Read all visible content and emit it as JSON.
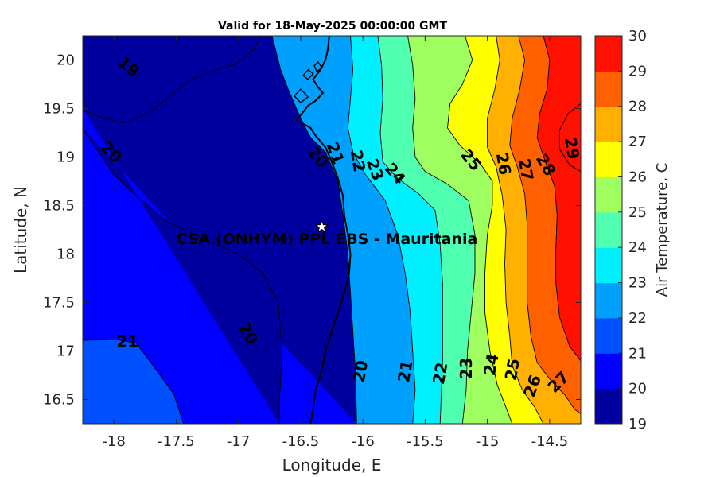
{
  "title": "Valid for 18-May-2025 00:00:00 GMT",
  "site_label": "CSA (ONHYM) PPL EBS  - Mauritania",
  "site_coord": {
    "lon": -16.33,
    "lat": 18.28
  },
  "xlabel": "Longitude, E",
  "ylabel": "Latitude, N",
  "colorbar_label": "Air Temperature, C",
  "chart_data": {
    "type": "contourf",
    "variable": "Air Temperature",
    "units": "C",
    "xlim": [
      -18.25,
      -14.25
    ],
    "ylim": [
      16.25,
      20.25
    ],
    "xticks": [
      "-18",
      "-17.5",
      "-17",
      "-16.5",
      "-16",
      "-15.5",
      "-15",
      "-14.5"
    ],
    "yticks": [
      "16.5",
      "17",
      "17.5",
      "18",
      "18.5",
      "19",
      "19.5",
      "20"
    ],
    "colorbar": {
      "range": [
        19,
        30
      ],
      "ticks": [
        "19",
        "20",
        "21",
        "22",
        "23",
        "24",
        "25",
        "26",
        "27",
        "28",
        "29",
        "30"
      ],
      "colors": [
        "#00009f",
        "#0000ff",
        "#0050ff",
        "#00a0ff",
        "#00f0ff",
        "#50ffb0",
        "#a0ff60",
        "#ffff00",
        "#ffb000",
        "#ff6000",
        "#ff1000",
        "#b00000"
      ]
    },
    "contour_labels": [
      {
        "text": "19",
        "lon": -17.88,
        "lat": 19.93,
        "rot": 40
      },
      {
        "text": "20",
        "lon": -18.02,
        "lat": 19.05,
        "rot": 45
      },
      {
        "text": "21",
        "lon": -17.89,
        "lat": 17.1,
        "rot": 0
      },
      {
        "text": "20",
        "lon": -16.92,
        "lat": 17.18,
        "rot": 60
      },
      {
        "text": "20",
        "lon": -16.36,
        "lat": 19.0,
        "rot": 50
      },
      {
        "text": "21",
        "lon": -16.22,
        "lat": 19.04,
        "rot": 70
      },
      {
        "text": "22",
        "lon": -16.04,
        "lat": 18.96,
        "rot": 80
      },
      {
        "text": "23",
        "lon": -15.9,
        "lat": 18.87,
        "rot": 70
      },
      {
        "text": "24",
        "lon": -15.74,
        "lat": 18.83,
        "rot": 50
      },
      {
        "text": "25",
        "lon": -15.13,
        "lat": 18.97,
        "rot": 50
      },
      {
        "text": "26",
        "lon": -14.87,
        "lat": 18.93,
        "rot": 80
      },
      {
        "text": "27",
        "lon": -14.69,
        "lat": 18.87,
        "rot": 80
      },
      {
        "text": "28",
        "lon": -14.53,
        "lat": 18.92,
        "rot": 60
      },
      {
        "text": "29",
        "lon": -14.32,
        "lat": 19.09,
        "rot": 80
      },
      {
        "text": "20",
        "lon": -16.02,
        "lat": 16.79,
        "rot": -80
      },
      {
        "text": "21",
        "lon": -15.66,
        "lat": 16.79,
        "rot": -80
      },
      {
        "text": "22",
        "lon": -15.38,
        "lat": 16.77,
        "rot": -80
      },
      {
        "text": "23",
        "lon": -15.17,
        "lat": 16.82,
        "rot": -90
      },
      {
        "text": "24",
        "lon": -14.97,
        "lat": 16.86,
        "rot": -80
      },
      {
        "text": "25",
        "lon": -14.8,
        "lat": 16.81,
        "rot": -80
      },
      {
        "text": "26",
        "lon": -14.64,
        "lat": 16.64,
        "rot": -70
      },
      {
        "text": "27",
        "lon": -14.43,
        "lat": 16.68,
        "rot": -45
      }
    ]
  },
  "contour_paths": [
    {
      "level": 20,
      "pts": [
        [
          -18.25,
          19.48
        ],
        [
          -18.08,
          19.4
        ],
        [
          -17.92,
          19.35
        ],
        [
          -17.72,
          19.45
        ],
        [
          -17.52,
          19.66
        ],
        [
          -17.38,
          19.8
        ],
        [
          -17.22,
          19.88
        ],
        [
          -17.02,
          19.96
        ],
        [
          -16.88,
          20.1
        ],
        [
          -16.82,
          20.25
        ]
      ]
    },
    {
      "level": 21,
      "pts": [
        [
          -18.25,
          17.11
        ],
        [
          -17.98,
          17.12
        ],
        [
          -17.82,
          17.08
        ],
        [
          -17.68,
          16.84
        ],
        [
          -17.52,
          16.56
        ],
        [
          -17.44,
          16.25
        ]
      ]
    },
    {
      "level": 21,
      "pts": [
        [
          -16.67,
          16.25
        ],
        [
          -16.67,
          16.5
        ],
        [
          -16.66,
          16.7
        ],
        [
          -16.65,
          17.0
        ],
        [
          -16.68,
          17.5
        ],
        [
          -16.8,
          17.8
        ],
        [
          -17.0,
          18.0
        ],
        [
          -17.32,
          18.18
        ],
        [
          -17.6,
          18.36
        ],
        [
          -17.82,
          18.6
        ],
        [
          -18.0,
          18.82
        ],
        [
          -18.2,
          19.2
        ],
        [
          -18.25,
          19.3
        ]
      ]
    },
    {
      "level": 22,
      "pts": [
        [
          -16.73,
          20.25
        ],
        [
          -16.7,
          20.1
        ],
        [
          -16.66,
          19.9
        ],
        [
          -16.6,
          19.7
        ],
        [
          -16.5,
          19.4
        ],
        [
          -16.42,
          19.2
        ],
        [
          -16.3,
          19.05
        ],
        [
          -16.2,
          18.75
        ],
        [
          -16.16,
          18.4
        ],
        [
          -16.12,
          18.0
        ],
        [
          -16.1,
          17.6
        ],
        [
          -16.08,
          17.2
        ],
        [
          -16.06,
          16.8
        ],
        [
          -16.05,
          16.25
        ]
      ]
    },
    {
      "level": 23,
      "pts": [
        [
          -16.1,
          20.25
        ],
        [
          -16.08,
          19.9
        ],
        [
          -16.1,
          19.6
        ],
        [
          -16.12,
          19.3
        ],
        [
          -16.08,
          19.05
        ],
        [
          -15.98,
          18.82
        ],
        [
          -15.82,
          18.55
        ],
        [
          -15.72,
          18.2
        ],
        [
          -15.66,
          17.8
        ],
        [
          -15.62,
          17.4
        ],
        [
          -15.6,
          17.0
        ],
        [
          -15.58,
          16.6
        ],
        [
          -15.6,
          16.25
        ]
      ]
    },
    {
      "level": 24,
      "pts": [
        [
          -15.88,
          20.25
        ],
        [
          -15.85,
          19.95
        ],
        [
          -15.84,
          19.6
        ],
        [
          -15.86,
          19.25
        ],
        [
          -15.84,
          18.95
        ],
        [
          -15.72,
          18.78
        ],
        [
          -15.55,
          18.62
        ],
        [
          -15.42,
          18.45
        ],
        [
          -15.38,
          18.1
        ],
        [
          -15.36,
          17.7
        ],
        [
          -15.36,
          17.3
        ],
        [
          -15.36,
          16.9
        ],
        [
          -15.37,
          16.55
        ],
        [
          -15.38,
          16.25
        ]
      ]
    },
    {
      "level": 25,
      "pts": [
        [
          -15.64,
          20.25
        ],
        [
          -15.6,
          19.95
        ],
        [
          -15.58,
          19.6
        ],
        [
          -15.6,
          19.3
        ],
        [
          -15.58,
          19.0
        ],
        [
          -15.5,
          18.85
        ],
        [
          -15.32,
          18.72
        ],
        [
          -15.15,
          18.55
        ],
        [
          -15.1,
          18.2
        ],
        [
          -15.1,
          17.8
        ],
        [
          -15.13,
          17.4
        ],
        [
          -15.16,
          17.0
        ],
        [
          -15.17,
          16.6
        ],
        [
          -15.2,
          16.25
        ]
      ]
    },
    {
      "level": 26,
      "pts": [
        [
          -15.18,
          20.25
        ],
        [
          -15.12,
          20.0
        ],
        [
          -15.2,
          19.75
        ],
        [
          -15.3,
          19.55
        ],
        [
          -15.32,
          19.3
        ],
        [
          -15.22,
          19.12
        ],
        [
          -15.05,
          18.92
        ],
        [
          -14.96,
          18.75
        ],
        [
          -14.96,
          18.5
        ],
        [
          -15.0,
          18.2
        ],
        [
          -15.02,
          17.8
        ],
        [
          -15.02,
          17.4
        ],
        [
          -14.98,
          17.0
        ],
        [
          -14.92,
          16.65
        ],
        [
          -14.8,
          16.25
        ]
      ]
    },
    {
      "level": 27,
      "pts": [
        [
          -14.93,
          20.25
        ],
        [
          -14.9,
          20.0
        ],
        [
          -14.94,
          19.7
        ],
        [
          -15.0,
          19.4
        ],
        [
          -15.0,
          19.1
        ],
        [
          -14.93,
          18.9
        ],
        [
          -14.88,
          18.6
        ],
        [
          -14.85,
          18.25
        ],
        [
          -14.86,
          17.9
        ],
        [
          -14.85,
          17.5
        ],
        [
          -14.82,
          17.15
        ],
        [
          -14.8,
          16.85
        ],
        [
          -14.72,
          16.6
        ],
        [
          -14.62,
          16.42
        ],
        [
          -14.55,
          16.25
        ]
      ]
    },
    {
      "level": 28,
      "pts": [
        [
          -14.75,
          20.25
        ],
        [
          -14.7,
          20.0
        ],
        [
          -14.74,
          19.7
        ],
        [
          -14.8,
          19.4
        ],
        [
          -14.82,
          19.12
        ],
        [
          -14.76,
          18.9
        ],
        [
          -14.7,
          18.62
        ],
        [
          -14.68,
          18.3
        ],
        [
          -14.68,
          17.9
        ],
        [
          -14.68,
          17.5
        ],
        [
          -14.65,
          17.15
        ],
        [
          -14.6,
          16.88
        ],
        [
          -14.48,
          16.68
        ],
        [
          -14.38,
          16.55
        ],
        [
          -14.3,
          16.4
        ],
        [
          -14.25,
          16.35
        ]
      ]
    },
    {
      "level": 29,
      "pts": [
        [
          -14.55,
          20.25
        ],
        [
          -14.5,
          20.0
        ],
        [
          -14.52,
          19.7
        ],
        [
          -14.58,
          19.45
        ],
        [
          -14.6,
          19.2
        ],
        [
          -14.52,
          18.9
        ],
        [
          -14.46,
          18.7
        ],
        [
          -14.44,
          18.4
        ],
        [
          -14.45,
          18.05
        ],
        [
          -14.45,
          17.7
        ],
        [
          -14.42,
          17.35
        ],
        [
          -14.34,
          17.05
        ],
        [
          -14.25,
          16.9
        ]
      ]
    },
    {
      "level": 30,
      "pts": [
        [
          -14.25,
          19.55
        ],
        [
          -14.35,
          19.45
        ],
        [
          -14.42,
          19.28
        ],
        [
          -14.42,
          19.08
        ],
        [
          -14.34,
          18.92
        ],
        [
          -14.25,
          18.85
        ]
      ]
    }
  ],
  "coastline": [
    [
      -16.27,
      20.25
    ],
    [
      -16.28,
      20.12
    ],
    [
      -16.3,
      20.0
    ],
    [
      -16.34,
      19.9
    ],
    [
      -16.4,
      19.8
    ],
    [
      -16.36,
      19.72
    ],
    [
      -16.32,
      19.66
    ],
    [
      -16.38,
      19.58
    ],
    [
      -16.44,
      19.53
    ],
    [
      -16.53,
      19.38
    ],
    [
      -16.42,
      19.3
    ],
    [
      -16.38,
      19.22
    ],
    [
      -16.3,
      19.1
    ],
    [
      -16.25,
      18.95
    ],
    [
      -16.2,
      18.78
    ],
    [
      -16.16,
      18.6
    ],
    [
      -16.15,
      18.4
    ],
    [
      -16.12,
      18.2
    ],
    [
      -16.1,
      18.0
    ],
    [
      -16.11,
      17.8
    ],
    [
      -16.15,
      17.6
    ],
    [
      -16.2,
      17.4
    ],
    [
      -16.25,
      17.2
    ],
    [
      -16.3,
      17.0
    ],
    [
      -16.33,
      16.8
    ],
    [
      -16.38,
      16.6
    ],
    [
      -16.4,
      16.4
    ],
    [
      -16.42,
      16.25
    ]
  ],
  "islands": [
    [
      [
        -16.44,
        19.9
      ],
      [
        -16.4,
        19.86
      ],
      [
        -16.44,
        19.8
      ],
      [
        -16.48,
        19.84
      ]
    ],
    [
      [
        -16.5,
        19.7
      ],
      [
        -16.44,
        19.62
      ],
      [
        -16.5,
        19.56
      ],
      [
        -16.55,
        19.63
      ]
    ],
    [
      [
        -16.36,
        19.98
      ],
      [
        -16.33,
        19.92
      ],
      [
        -16.37,
        19.88
      ],
      [
        -16.39,
        19.94
      ]
    ]
  ]
}
